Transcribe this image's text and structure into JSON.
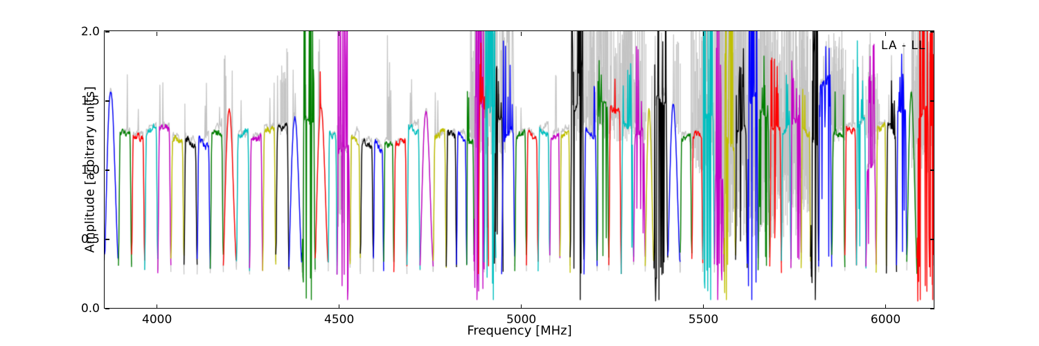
{
  "chart_data": {
    "type": "line",
    "title": "",
    "annotation": "LA - LL",
    "xlabel": "Frequency [MHz]",
    "ylabel": "Amplitude [arbitrary units]",
    "xlim": [
      3858,
      6134
    ],
    "ylim": [
      0.0,
      2.0
    ],
    "xticks": [
      4000,
      4500,
      5000,
      5500,
      6000
    ],
    "xtick_labels": [
      "4000",
      "4500",
      "5000",
      "5500",
      "6000"
    ],
    "yticks": [
      0.0,
      0.5,
      1.0,
      1.5,
      2.0
    ],
    "ytick_labels": [
      "0.0",
      "0.5",
      "1.0",
      "1.5",
      "2.0"
    ],
    "grid": false,
    "legend_position": "none",
    "seed": 7,
    "base_level": 0.3,
    "line_width": 1.4,
    "colors": {
      "b": "#0000ff",
      "g": "#007f00",
      "r": "#ff0000",
      "c": "#00bfbf",
      "m": "#c400c4",
      "y": "#bfbf00",
      "k": "#000000",
      "gray": "#c4c4c4"
    },
    "subband_fields": [
      "f_start_MHz",
      "f_end_MHz",
      "color",
      "peak_amplitude",
      "disturbance_0to3",
      "gray_rfi_0to3",
      "peaked_shape"
    ],
    "subbands": [
      [
        3858,
        3896,
        "b",
        1.57,
        0,
        0,
        1
      ],
      [
        3896,
        3932,
        "g",
        1.26,
        0,
        1,
        0
      ],
      [
        3932,
        3968,
        "r",
        1.24,
        0,
        1,
        0
      ],
      [
        3968,
        4004,
        "c",
        1.27,
        0,
        0,
        0
      ],
      [
        4004,
        4040,
        "m",
        1.3,
        0,
        1,
        0
      ],
      [
        4040,
        4076,
        "y",
        1.22,
        0,
        0,
        0
      ],
      [
        4076,
        4112,
        "k",
        1.21,
        0,
        1,
        0
      ],
      [
        4112,
        4148,
        "b",
        1.2,
        0,
        1,
        0
      ],
      [
        4148,
        4184,
        "g",
        1.27,
        0,
        1,
        0
      ],
      [
        4184,
        4220,
        "r",
        1.43,
        0,
        2,
        1
      ],
      [
        4220,
        4256,
        "c",
        1.25,
        0,
        1,
        0
      ],
      [
        4256,
        4292,
        "m",
        1.22,
        0,
        0,
        0
      ],
      [
        4292,
        4328,
        "y",
        1.28,
        0,
        1,
        0
      ],
      [
        4328,
        4364,
        "k",
        1.3,
        0,
        2,
        0
      ],
      [
        4364,
        4400,
        "b",
        1.38,
        0,
        1,
        1
      ],
      [
        4400,
        4436,
        "g",
        1.35,
        3,
        1,
        0
      ],
      [
        4436,
        4472,
        "r",
        1.46,
        1,
        1,
        1
      ],
      [
        4472,
        4496,
        "c",
        1.25,
        0,
        0,
        0
      ],
      [
        4496,
        4532,
        "m",
        1.15,
        3,
        0,
        0
      ],
      [
        4532,
        4560,
        "y",
        1.23,
        0,
        0,
        0
      ],
      [
        4560,
        4596,
        "k",
        1.2,
        0,
        0,
        0
      ],
      [
        4596,
        4624,
        "b",
        1.18,
        0,
        0,
        0
      ],
      [
        4624,
        4652,
        "g",
        1.18,
        0,
        2,
        0
      ],
      [
        4652,
        4688,
        "r",
        1.19,
        0,
        0,
        0
      ],
      [
        4688,
        4724,
        "c",
        1.3,
        0,
        1,
        0
      ],
      [
        4724,
        4760,
        "m",
        1.42,
        0,
        0,
        1
      ],
      [
        4760,
        4796,
        "y",
        1.24,
        0,
        1,
        0
      ],
      [
        4796,
        4824,
        "k",
        1.25,
        0,
        0,
        0
      ],
      [
        4824,
        4852,
        "b",
        1.24,
        0,
        0,
        0
      ],
      [
        4852,
        4872,
        "g",
        1.22,
        1,
        1,
        0
      ],
      [
        4872,
        4900,
        "m",
        1.5,
        3,
        2,
        0
      ],
      [
        4884,
        4912,
        "r",
        1.5,
        2,
        1,
        0
      ],
      [
        4900,
        4932,
        "c",
        1.45,
        3,
        3,
        0
      ],
      [
        4928,
        4952,
        "k",
        1.35,
        2,
        1,
        0
      ],
      [
        4948,
        4984,
        "b",
        1.25,
        2,
        3,
        0
      ],
      [
        4984,
        5016,
        "g",
        1.24,
        0,
        1,
        0
      ],
      [
        5016,
        5048,
        "r",
        1.26,
        0,
        0,
        0
      ],
      [
        5048,
        5080,
        "c",
        1.28,
        0,
        0,
        0
      ],
      [
        5080,
        5108,
        "m",
        1.24,
        0,
        1,
        0
      ],
      [
        5108,
        5136,
        "y",
        1.26,
        0,
        0,
        0
      ],
      [
        5136,
        5174,
        "k",
        1.45,
        3,
        2,
        0
      ],
      [
        5174,
        5210,
        "b",
        1.27,
        1,
        3,
        0
      ],
      [
        5210,
        5242,
        "g",
        1.48,
        2,
        3,
        0
      ],
      [
        5242,
        5276,
        "r",
        1.44,
        1,
        2,
        0
      ],
      [
        5276,
        5310,
        "c",
        1.32,
        2,
        3,
        0
      ],
      [
        5310,
        5342,
        "m",
        1.26,
        2,
        1,
        0
      ],
      [
        5342,
        5366,
        "y",
        1.43,
        0,
        1,
        1
      ],
      [
        5366,
        5404,
        "k",
        1.5,
        3,
        2,
        0
      ],
      [
        5404,
        5438,
        "b",
        1.47,
        0,
        1,
        1
      ],
      [
        5438,
        5470,
        "g",
        1.23,
        0,
        0,
        0
      ],
      [
        5470,
        5500,
        "r",
        1.25,
        0,
        1,
        0
      ],
      [
        5500,
        5532,
        "c",
        1.4,
        3,
        3,
        0
      ],
      [
        5532,
        5558,
        "m",
        0.95,
        3,
        3,
        0
      ],
      [
        5558,
        5590,
        "y",
        1.2,
        3,
        3,
        0
      ],
      [
        5590,
        5622,
        "k",
        1.3,
        2,
        3,
        0
      ],
      [
        5622,
        5652,
        "b",
        1.5,
        3,
        3,
        0
      ],
      [
        5652,
        5684,
        "g",
        1.4,
        2,
        3,
        0
      ],
      [
        5684,
        5716,
        "r",
        1.3,
        2,
        2,
        0
      ],
      [
        5716,
        5742,
        "c",
        1.28,
        1,
        2,
        0
      ],
      [
        5742,
        5770,
        "m",
        1.35,
        2,
        2,
        0
      ],
      [
        5770,
        5796,
        "y",
        1.3,
        1,
        2,
        0
      ],
      [
        5796,
        5818,
        "k",
        1.2,
        3,
        1,
        0
      ],
      [
        5818,
        5854,
        "b",
        1.62,
        2,
        2,
        0
      ],
      [
        5854,
        5890,
        "g",
        1.26,
        1,
        2,
        0
      ],
      [
        5890,
        5922,
        "r",
        1.3,
        0,
        1,
        0
      ],
      [
        5922,
        5948,
        "c",
        1.32,
        2,
        1,
        0
      ],
      [
        5948,
        5976,
        "m",
        1.0,
        2,
        2,
        0
      ],
      [
        5976,
        6004,
        "y",
        1.3,
        0,
        0,
        0
      ],
      [
        6004,
        6032,
        "k",
        1.3,
        1,
        2,
        0
      ],
      [
        6032,
        6060,
        "b",
        1.42,
        2,
        1,
        0
      ],
      [
        6060,
        6088,
        "g",
        1.55,
        0,
        1,
        1
      ],
      [
        6088,
        6122,
        "r",
        1.4,
        3,
        3,
        0
      ],
      [
        6122,
        6134,
        "r",
        1.3,
        3,
        2,
        0
      ]
    ],
    "gray_rfi_region_fields": [
      "f_start",
      "f_end",
      "step_MHz",
      "base_min",
      "base_max",
      "top_min",
      "top_max"
    ],
    "gray_rfi_regions": [
      [
        4341,
        4360,
        2.5,
        1.25,
        1.4,
        1.5,
        1.95
      ],
      [
        4497,
        4513,
        2.0,
        0.55,
        0.8,
        1.1,
        1.4
      ],
      [
        4860,
        4958,
        2.2,
        1.1,
        1.35,
        1.45,
        2.5
      ],
      [
        5148,
        5176,
        2.5,
        1.2,
        1.4,
        1.6,
        2.4
      ],
      [
        5180,
        5344,
        2.0,
        1.2,
        1.4,
        1.4,
        2.4
      ],
      [
        5424,
        5440,
        3.5,
        1.25,
        1.4,
        1.75,
        1.95
      ],
      [
        5468,
        5530,
        2.2,
        0.95,
        1.2,
        1.35,
        2.4
      ],
      [
        5532,
        5795,
        1.5,
        0.5,
        1.05,
        1.25,
        2.6
      ],
      [
        5852,
        5892,
        2.2,
        1.2,
        1.35,
        1.5,
        2.05
      ],
      [
        5948,
        5988,
        2.8,
        1.15,
        1.3,
        1.4,
        1.8
      ],
      [
        6074,
        6134,
        2.0,
        0.95,
        1.2,
        1.5,
        2.5
      ]
    ]
  }
}
